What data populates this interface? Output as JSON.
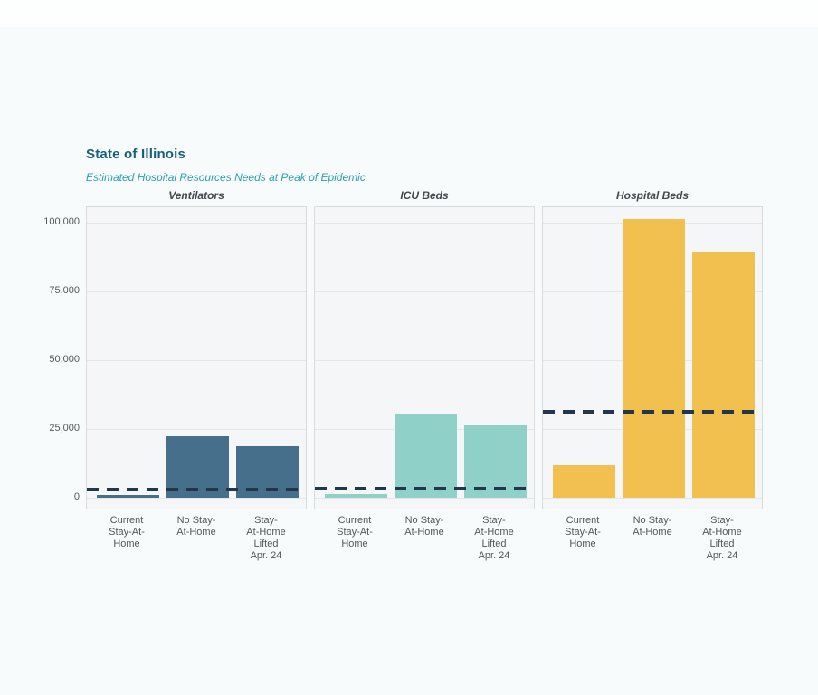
{
  "header": {
    "title": "State of Illinois",
    "subtitle": "Estimated Hospital Resources Needs at Peak of Epidemic",
    "title_color": "#17607a",
    "subtitle_color": "#2a9fb0"
  },
  "chart_data": {
    "type": "bar",
    "title": "State of Illinois",
    "subtitle": "Estimated Hospital Resources Needs at Peak of Epidemic",
    "categories": [
      [
        "Current",
        "Stay-At-",
        "Home"
      ],
      [
        "No Stay-",
        "At-Home"
      ],
      [
        "Stay-",
        "At-Home",
        "Lifted",
        "Apr. 24"
      ]
    ],
    "panels": [
      {
        "title": "Ventilators",
        "bar_color": "#456f8a",
        "values": [
          1000,
          22300,
          18800
        ],
        "capacity_line": 3000
      },
      {
        "title": "ICU Beds",
        "bar_color": "#8fd1c8",
        "values": [
          1300,
          30700,
          26200
        ],
        "capacity_line": 3300
      },
      {
        "title": "Hospital Beds",
        "bar_color": "#f2c04e",
        "values": [
          11800,
          101300,
          89300
        ],
        "capacity_line": 31200
      }
    ],
    "y_ticks": [
      0,
      25000,
      50000,
      75000,
      100000
    ],
    "y_tick_labels": [
      "0",
      "25,000",
      "50,000",
      "75,000",
      "100,000"
    ],
    "ylim": [
      0,
      105500
    ],
    "ylabel": "",
    "xlabel": "",
    "grid": true,
    "legend": "none",
    "capacity_line_color": "#22374a",
    "capacity_line_style": "dashed"
  }
}
